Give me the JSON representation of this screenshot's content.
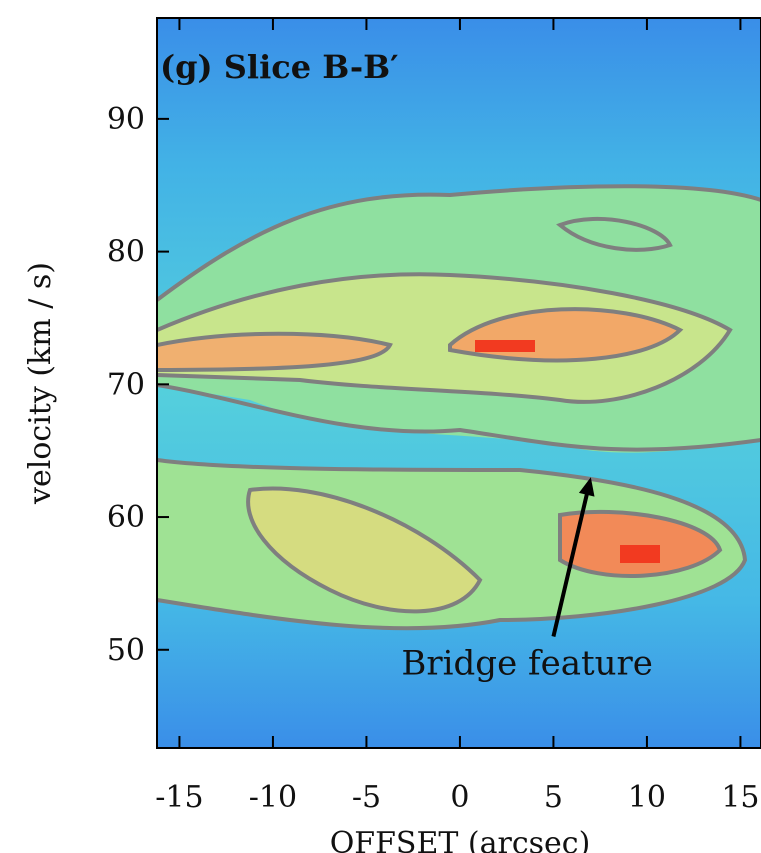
{
  "chart_data": {
    "type": "heatmap",
    "title": "(g) Slice B-B′",
    "xlabel": "OFFSET (arcsec)",
    "ylabel": "velocity (km / s)",
    "xlim": [
      -16.2,
      16.1
    ],
    "xticks": [
      -15,
      -10,
      -5,
      0,
      5,
      10,
      15
    ],
    "ylim": [
      42.6,
      97.6
    ],
    "yticks": [
      50,
      60,
      70,
      80,
      90
    ],
    "annotations": [
      {
        "text": "Bridge feature",
        "xy": [
          7,
          63
        ],
        "xytext": [
          5,
          51
        ]
      }
    ]
  }
}
